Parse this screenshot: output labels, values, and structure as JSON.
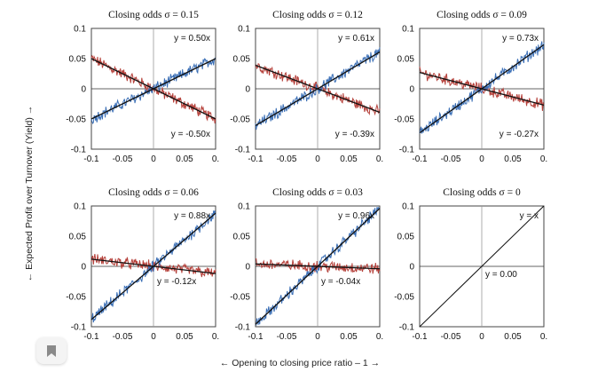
{
  "chart_data": {
    "type": "line",
    "xlabel": "←   Opening to closing price ratio – 1   →",
    "ylabel": "←   Expected Profit over Turnover (Yield)   →",
    "xlim": [
      -0.1,
      0.1
    ],
    "ylim": [
      -0.1,
      0.1
    ],
    "x_ticks": [
      "-0.1",
      "-0.05",
      "0",
      "0.05",
      "0."
    ],
    "y_ticks": [
      "0.1",
      "0.05",
      "0",
      "-0.05",
      "-0.1"
    ],
    "colors": {
      "blue": "#3b6fb6",
      "red": "#b5403a",
      "fit": "#111111",
      "grid": "#bdbdbd"
    },
    "panels": [
      {
        "title": "Closing odds σ = 0.15",
        "blue_slope": 0.5,
        "red_slope": -0.5,
        "blue_label": "y = 0.50x",
        "red_label": "y = -0.50x"
      },
      {
        "title": "Closing odds σ = 0.12",
        "blue_slope": 0.61,
        "red_slope": -0.39,
        "blue_label": "y = 0.61x",
        "red_label": "y = -0.39x"
      },
      {
        "title": "Closing odds σ = 0.09",
        "blue_slope": 0.73,
        "red_slope": -0.27,
        "blue_label": "y = 0.73x",
        "red_label": "y = -0.27x"
      },
      {
        "title": "Closing odds σ = 0.06",
        "blue_slope": 0.88,
        "red_slope": -0.12,
        "blue_label": "y = 0.88x",
        "red_label": "y = -0.12x"
      },
      {
        "title": "Closing odds σ = 0.03",
        "blue_slope": 0.96,
        "red_slope": -0.04,
        "blue_label": "y = 0.96x",
        "red_label": "y = -0.04x"
      },
      {
        "title": "Closing odds σ = 0",
        "blue_slope": 1.0,
        "red_slope": 0.0,
        "blue_label": "y = x",
        "red_label": "y = 0.00",
        "noiseless": true
      }
    ]
  }
}
